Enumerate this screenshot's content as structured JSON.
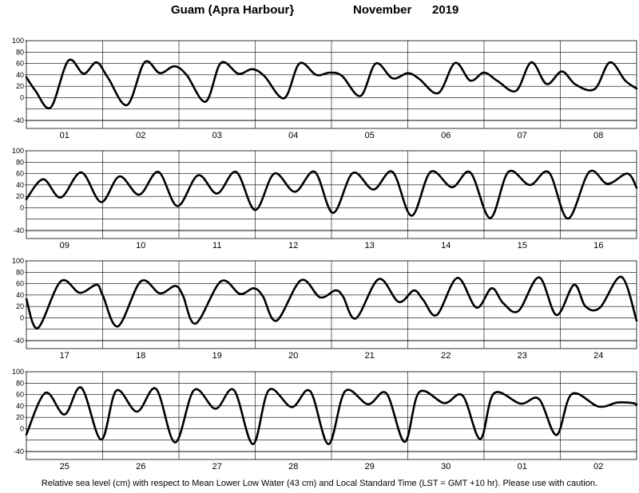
{
  "header": {
    "station": "Guam (Apra Harbour}",
    "month": "November",
    "year": "2019"
  },
  "footer": {
    "note": "Relative sea level (cm) with respect to Mean Lower Low Water (43 cm) and Local Standard Time (LST = GMT +10 hr). Please use with caution."
  },
  "colors": {
    "curve": "#000000",
    "grid": "#000000"
  },
  "chart_data": [
    {
      "type": "line",
      "days": [
        "01",
        "02",
        "03",
        "04",
        "05",
        "06",
        "07",
        "08"
      ],
      "yticks": [
        100,
        80,
        60,
        40,
        20,
        0,
        -40
      ],
      "ylim": [
        -40,
        100
      ],
      "grid": true,
      "x": [
        0,
        0.12,
        0.32,
        0.55,
        0.75,
        0.92,
        1.07,
        1.32,
        1.55,
        1.75,
        1.94,
        2.1,
        2.35,
        2.55,
        2.78,
        2.96,
        3.12,
        3.38,
        3.58,
        3.8,
        3.98,
        4.14,
        4.38,
        4.58,
        4.8,
        5.0,
        5.15,
        5.4,
        5.62,
        5.82,
        6.0,
        6.18,
        6.42,
        6.62,
        6.82,
        7.02,
        7.2,
        7.45,
        7.65,
        7.85,
        8.0
      ],
      "y": [
        36,
        12,
        -17,
        65,
        42,
        62,
        35,
        -13,
        62,
        43,
        55,
        40,
        -7,
        61,
        42,
        50,
        38,
        -1,
        60,
        40,
        44,
        38,
        3,
        60,
        34,
        43,
        33,
        8,
        61,
        30,
        44,
        29,
        12,
        62,
        24,
        46,
        23,
        15,
        62,
        30,
        16
      ]
    },
    {
      "type": "line",
      "days": [
        "09",
        "10",
        "11",
        "12",
        "13",
        "14",
        "15",
        "16"
      ],
      "yticks": [
        100,
        80,
        60,
        40,
        20,
        0,
        -40
      ],
      "ylim": [
        -40,
        100
      ],
      "grid": true,
      "x": [
        0,
        0.22,
        0.45,
        0.72,
        0.98,
        1.22,
        1.48,
        1.73,
        1.98,
        2.25,
        2.5,
        2.75,
        3.0,
        3.25,
        3.52,
        3.78,
        4.02,
        4.28,
        4.55,
        4.8,
        5.05,
        5.3,
        5.58,
        5.82,
        6.08,
        6.32,
        6.6,
        6.85,
        7.1,
        7.38,
        7.62,
        7.88,
        8.0
      ],
      "y": [
        15,
        50,
        18,
        62,
        10,
        55,
        23,
        63,
        3,
        57,
        25,
        63,
        -4,
        60,
        28,
        63,
        -9,
        61,
        32,
        63,
        -14,
        63,
        36,
        62,
        -18,
        63,
        40,
        62,
        -19,
        63,
        42,
        60,
        35
      ]
    },
    {
      "type": "line",
      "days": [
        "17",
        "18",
        "19",
        "20",
        "21",
        "22",
        "23",
        "24"
      ],
      "yticks": [
        100,
        80,
        60,
        40,
        20,
        0,
        -40
      ],
      "ylim": [
        -40,
        100
      ],
      "grid": true,
      "x": [
        0,
        0.15,
        0.45,
        0.7,
        0.92,
        1.0,
        1.2,
        1.5,
        1.75,
        1.95,
        2.05,
        2.22,
        2.55,
        2.8,
        2.98,
        3.1,
        3.28,
        3.6,
        3.85,
        4.05,
        4.15,
        4.32,
        4.62,
        4.88,
        5.08,
        5.2,
        5.38,
        5.65,
        5.9,
        6.1,
        6.25,
        6.45,
        6.72,
        6.95,
        7.18,
        7.33,
        7.52,
        7.8,
        8.0
      ],
      "y": [
        33,
        -18,
        64,
        44,
        58,
        40,
        -15,
        64,
        43,
        56,
        40,
        -10,
        64,
        42,
        52,
        38,
        -5,
        66,
        36,
        48,
        38,
        -1,
        68,
        28,
        48,
        32,
        5,
        70,
        18,
        52,
        26,
        12,
        71,
        5,
        58,
        20,
        18,
        72,
        -5
      ]
    },
    {
      "type": "line",
      "days": [
        "25",
        "26",
        "27",
        "28",
        "29",
        "30",
        "01",
        "02"
      ],
      "yticks": [
        100,
        80,
        60,
        40,
        20,
        0,
        -40
      ],
      "ylim": [
        -40,
        100
      ],
      "grid": true,
      "x": [
        0,
        0.25,
        0.5,
        0.72,
        0.98,
        1.18,
        1.45,
        1.7,
        1.95,
        2.2,
        2.48,
        2.72,
        2.97,
        3.18,
        3.48,
        3.72,
        3.96,
        4.18,
        4.48,
        4.72,
        4.96,
        5.15,
        5.48,
        5.72,
        5.95,
        6.13,
        6.48,
        6.72,
        6.95,
        7.15,
        7.5,
        7.75,
        7.95,
        8.0
      ],
      "y": [
        -10,
        63,
        25,
        72,
        -19,
        67,
        30,
        70,
        -24,
        68,
        35,
        68,
        -27,
        68,
        38,
        66,
        -27,
        66,
        43,
        62,
        -23,
        64,
        45,
        58,
        -18,
        62,
        44,
        52,
        -11,
        61,
        39,
        46,
        45,
        42
      ]
    }
  ]
}
